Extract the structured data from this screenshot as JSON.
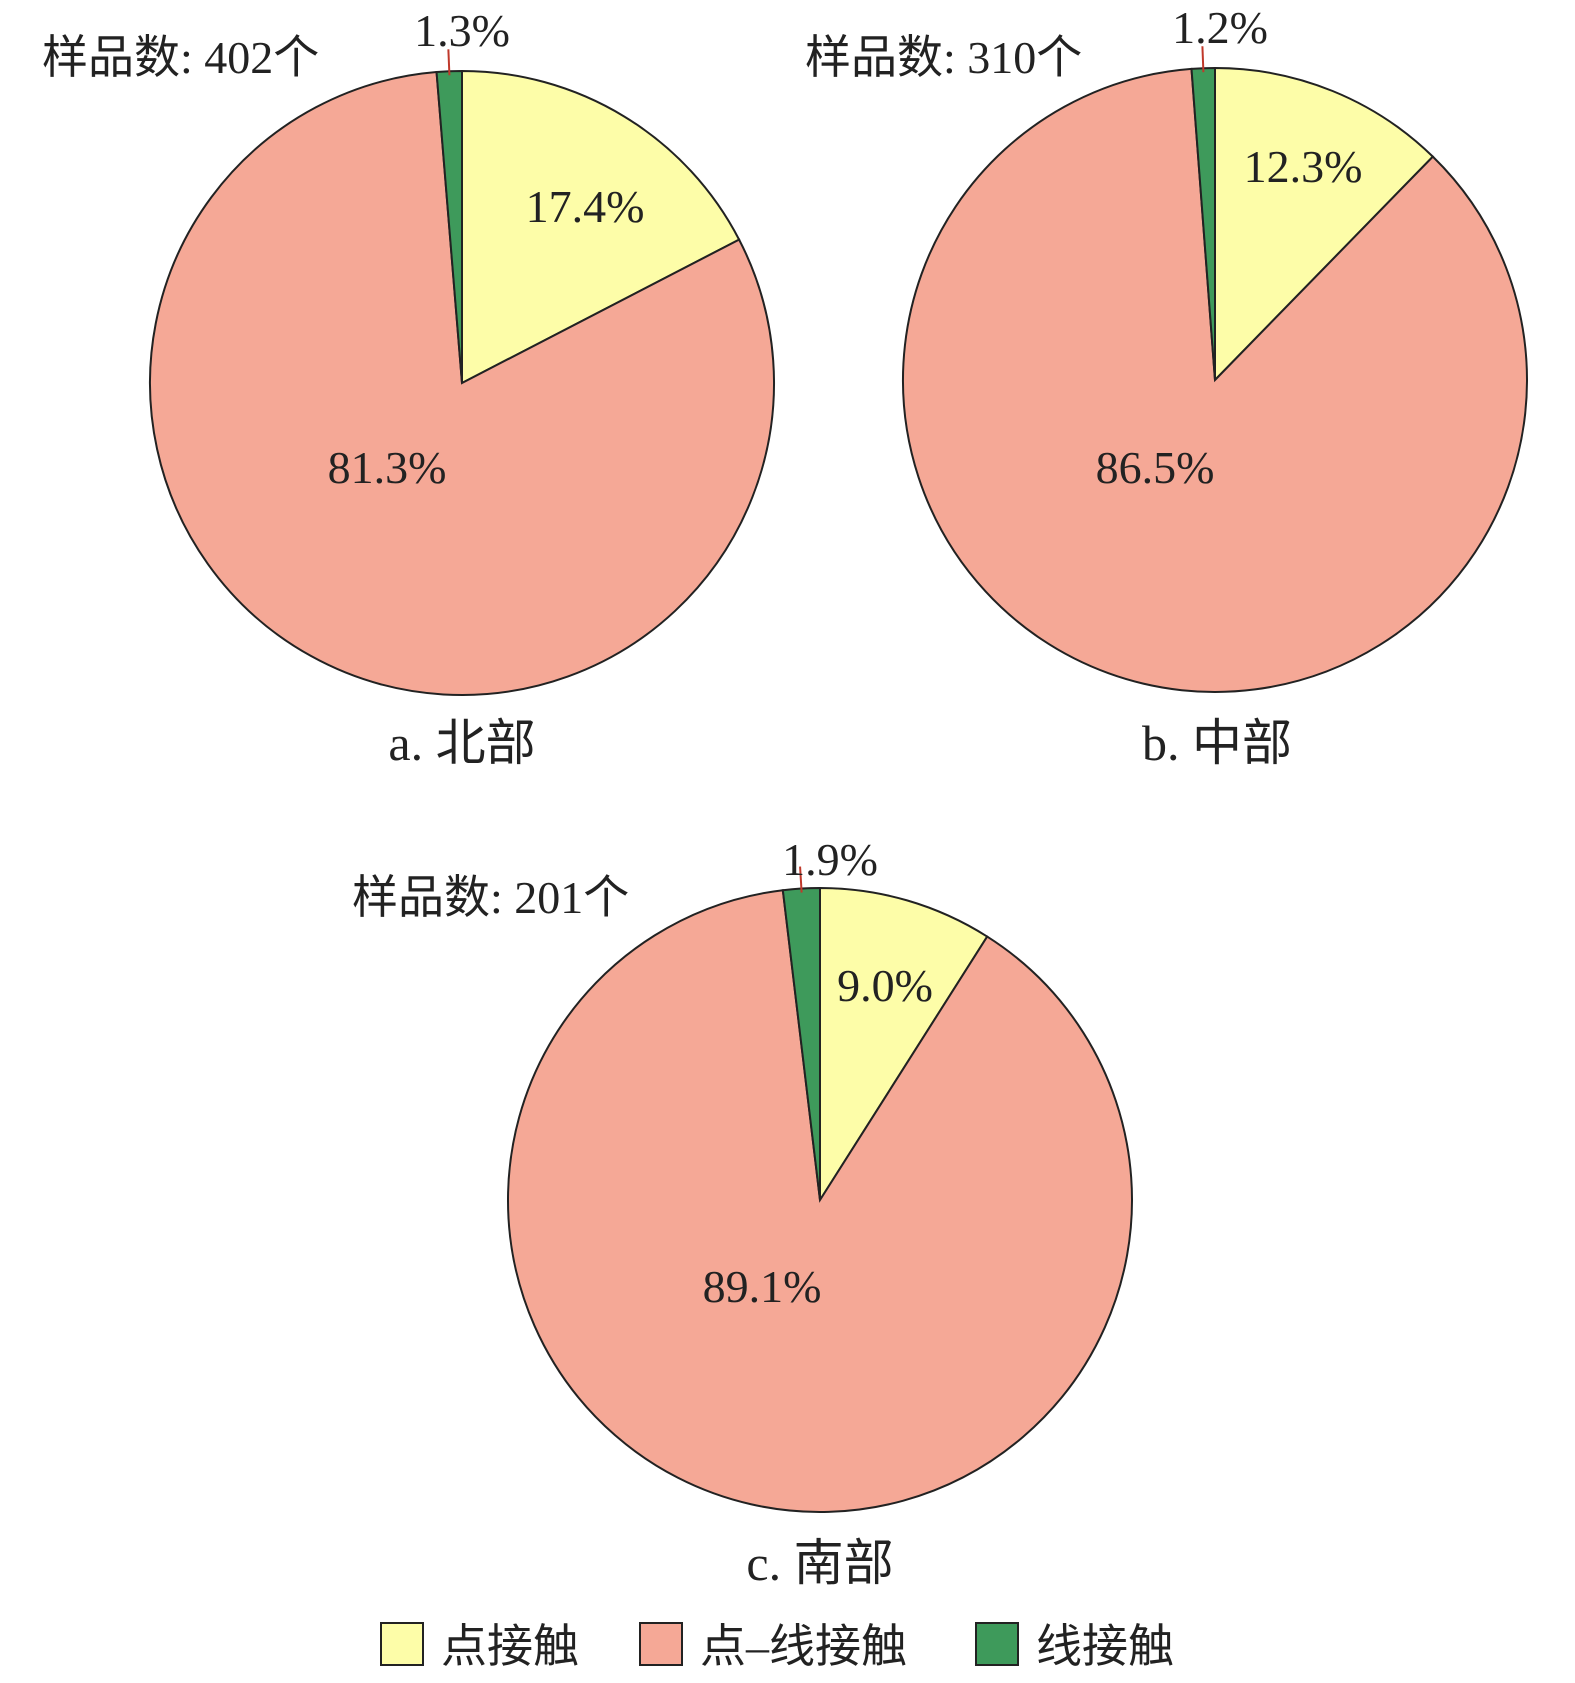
{
  "chart_data": [
    {
      "type": "pie",
      "caption": "a. 北部",
      "sample_label": "样品数: 402个",
      "slices": [
        {
          "label": "点接触",
          "value": 17.4,
          "text": "17.4%"
        },
        {
          "label": "点–线接触",
          "value": 81.3,
          "text": "81.3%"
        },
        {
          "label": "线接触",
          "value": 1.3,
          "text": "1.3%"
        }
      ]
    },
    {
      "type": "pie",
      "caption": "b. 中部",
      "sample_label": "样品数: 310个",
      "slices": [
        {
          "label": "点接触",
          "value": 12.3,
          "text": "12.3%"
        },
        {
          "label": "点–线接触",
          "value": 86.5,
          "text": "86.5%"
        },
        {
          "label": "线接触",
          "value": 1.2,
          "text": "1.2%"
        }
      ]
    },
    {
      "type": "pie",
      "caption": "c. 南部",
      "sample_label": "样品数: 201个",
      "slices": [
        {
          "label": "点接触",
          "value": 9.0,
          "text": "9.0%"
        },
        {
          "label": "点–线接触",
          "value": 89.1,
          "text": "89.1%"
        },
        {
          "label": "线接触",
          "value": 1.9,
          "text": "1.9%"
        }
      ]
    }
  ],
  "legend": {
    "position": "bottom-center",
    "items": [
      {
        "label": "点接触",
        "color": "#fdfda8"
      },
      {
        "label": "点–线接触",
        "color": "#f5a896"
      },
      {
        "label": "线接触",
        "color": "#3e9a5b"
      }
    ]
  },
  "colors": {
    "point": "#fdfda8",
    "point_line": "#f5a896",
    "line": "#3e9a5b",
    "outline": "#222222",
    "leader": "#c0392b"
  }
}
